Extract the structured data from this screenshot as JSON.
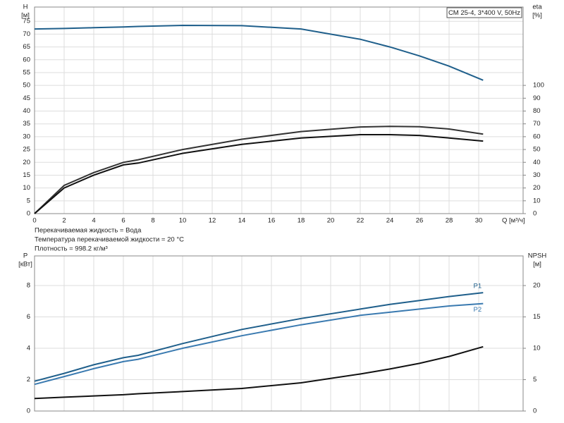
{
  "chart_data": [
    {
      "type": "line",
      "title": "CM 25-4, 3*400 V, 50Hz",
      "notes": [
        "Перекачиваемая жидкость = Вода",
        "Температура перекачиваемой жидкости = 20 °C",
        "Плотность = 998.2 кг/м³"
      ],
      "xlabel": "Q [м³/ч]",
      "ylabel": "H",
      "yunit": "[м]",
      "y2label": "eta",
      "y2unit": "[%]",
      "x": [
        0,
        2,
        4,
        6,
        7,
        10,
        14,
        18,
        22,
        24,
        26,
        28,
        30.3
      ],
      "xlim": [
        0,
        33
      ],
      "xticks": [
        0,
        2,
        4,
        6,
        8,
        10,
        12,
        14,
        16,
        18,
        20,
        22,
        24,
        26,
        28,
        30
      ],
      "ylim": [
        0,
        80
      ],
      "yticks": [
        0,
        5,
        10,
        15,
        20,
        25,
        30,
        35,
        40,
        45,
        50,
        55,
        60,
        65,
        70,
        75
      ],
      "y2lim": [
        0,
        160
      ],
      "y2ticks": [
        0,
        10,
        20,
        30,
        40,
        50,
        60,
        70,
        80,
        90,
        100
      ],
      "grid": true,
      "series": [
        {
          "color": "#1f5f8b",
          "values": [
            72,
            72.2,
            72.5,
            72.8,
            73,
            73.4,
            73.3,
            72,
            68,
            65,
            61.5,
            57.5,
            52
          ]
        },
        {
          "color": "#333333",
          "axis": "y2",
          "values": [
            0,
            22,
            32,
            40,
            42,
            50,
            58,
            64,
            67.6,
            68,
            67.8,
            66,
            62
          ]
        },
        {
          "color": "#111111",
          "axis": "y2",
          "values": [
            0,
            20,
            30,
            38,
            39.4,
            47,
            54,
            59,
            61.6,
            61.6,
            61,
            59,
            56.6
          ]
        }
      ]
    },
    {
      "type": "line",
      "ylabel": "P",
      "yunit": "[кВт]",
      "y2label": "NPSH",
      "y2unit": "[м]",
      "x": [
        0,
        2,
        4,
        6,
        7,
        10,
        14,
        18,
        22,
        24,
        26,
        28,
        30.3
      ],
      "xlim": [
        0,
        33
      ],
      "xticks": [
        0,
        2,
        4,
        6,
        8,
        10,
        12,
        14,
        16,
        18,
        20,
        22,
        24,
        26,
        28,
        30
      ],
      "ylim": [
        0,
        9.8
      ],
      "yticks": [
        0,
        2,
        4,
        6,
        8
      ],
      "y2lim": [
        0,
        24.5
      ],
      "y2ticks": [
        0,
        5,
        10,
        15,
        20
      ],
      "grid": true,
      "series": [
        {
          "name": "P1",
          "color": "#1f5f8b",
          "values": [
            1.9,
            2.4,
            2.95,
            3.4,
            3.55,
            4.3,
            5.2,
            5.9,
            6.5,
            6.8,
            7.05,
            7.3,
            7.55
          ]
        },
        {
          "name": "P2",
          "color": "#3a7ab0",
          "values": [
            1.7,
            2.2,
            2.7,
            3.15,
            3.3,
            4.0,
            4.8,
            5.5,
            6.1,
            6.3,
            6.5,
            6.7,
            6.85
          ]
        },
        {
          "color": "#111111",
          "axis": "y2",
          "values": [
            2,
            2.2,
            2.4,
            2.6,
            2.75,
            3.1,
            3.6,
            4.5,
            5.9,
            6.7,
            7.6,
            8.7,
            10.25
          ]
        }
      ]
    }
  ]
}
